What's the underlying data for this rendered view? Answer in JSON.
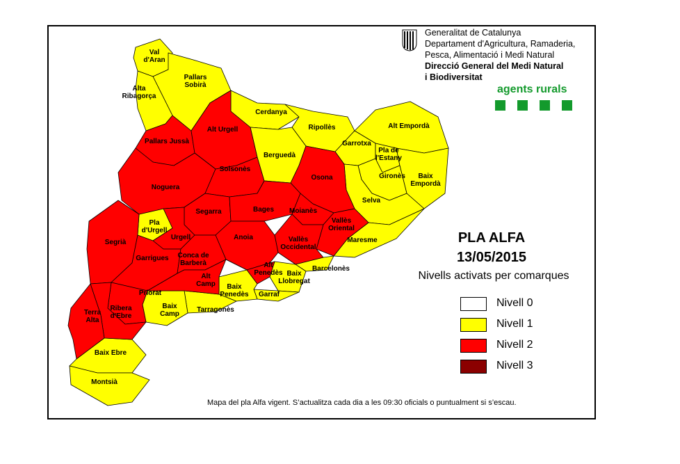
{
  "map": {
    "colors": {
      "nivell_0": "#ffffff",
      "nivell_1": "#ffff00",
      "nivell_2": "#ff0000",
      "nivell_3": "#8b0000"
    },
    "comarques": [
      {
        "name": "Val\nd'Aran",
        "level": 1
      },
      {
        "name": "Pallars\nSobirà",
        "level": 1
      },
      {
        "name": "Alta\nRibagorça",
        "level": 1
      },
      {
        "name": "Pallars Jussà",
        "level": 2
      },
      {
        "name": "Alt Urgell",
        "level": 2
      },
      {
        "name": "Cerdanya",
        "level": 1
      },
      {
        "name": "Ripollès",
        "level": 1
      },
      {
        "name": "Alt Empordà",
        "level": 1
      },
      {
        "name": "Garrotxa",
        "level": 1
      },
      {
        "name": "Pla de\nl'Estany",
        "level": 1
      },
      {
        "name": "Berguedà",
        "level": 1
      },
      {
        "name": "Solsonès",
        "level": 2
      },
      {
        "name": "Noguera",
        "level": 2
      },
      {
        "name": "Osona",
        "level": 2
      },
      {
        "name": "Gironès",
        "level": 1
      },
      {
        "name": "Baix\nEmpordà",
        "level": 1
      },
      {
        "name": "Selva",
        "level": 1
      },
      {
        "name": "Bages",
        "level": 2
      },
      {
        "name": "Moianès",
        "level": 2
      },
      {
        "name": "Segarra",
        "level": 2
      },
      {
        "name": "Vallès\nOriental",
        "level": 2
      },
      {
        "name": "Pla\nd'Urgell",
        "level": 1
      },
      {
        "name": "Urgell",
        "level": 2
      },
      {
        "name": "Segrià",
        "level": 2
      },
      {
        "name": "Anoia",
        "level": 2
      },
      {
        "name": "Vallès\nOccidental",
        "level": 2
      },
      {
        "name": "Maresme",
        "level": 1
      },
      {
        "name": "Garrigues",
        "level": 2
      },
      {
        "name": "Conca de\nBarberà",
        "level": 2
      },
      {
        "name": "Alt\nPenedès",
        "level": 2
      },
      {
        "name": "Barcelonès",
        "level": 1
      },
      {
        "name": "Alt\nCamp",
        "level": 2
      },
      {
        "name": "Baix\nLlobregat",
        "level": 1
      },
      {
        "name": "Baix\nPenedès",
        "level": 1
      },
      {
        "name": "Garraf",
        "level": 1
      },
      {
        "name": "Priorat",
        "level": 2
      },
      {
        "name": "Baix\nCamp",
        "level": 1
      },
      {
        "name": "Tarragonès",
        "level": 1
      },
      {
        "name": "Terra\nAlta",
        "level": 2
      },
      {
        "name": "Ribera\nd'Ebre",
        "level": 2
      },
      {
        "name": "Baix Ebre",
        "level": 1
      },
      {
        "name": "Montsià",
        "level": 1
      }
    ]
  },
  "header": {
    "line1": "Generalitat de Catalunya",
    "line2": "Departament d'Agricultura, Ramaderia,",
    "line3": "Pesca, Alimentació i Medi Natural",
    "line4": "Direcció General del Medi Natural",
    "line5": "i Biodiversitat",
    "agents": "agents rurals"
  },
  "plan": {
    "title": "PLA ALFA",
    "date": "13/05/2015",
    "subtitle": "Nivells activats per comarques"
  },
  "legend": [
    {
      "label": "Nivell 0",
      "color": "#ffffff"
    },
    {
      "label": "Nivell 1",
      "color": "#ffff00"
    },
    {
      "label": "Nivell 2",
      "color": "#ff0000"
    },
    {
      "label": "Nivell 3",
      "color": "#8b0000"
    }
  ],
  "footer": "Mapa del pla Alfa vigent.  S’actualitza cada dia a les 09:30 oficials o puntualment  si s’escau."
}
